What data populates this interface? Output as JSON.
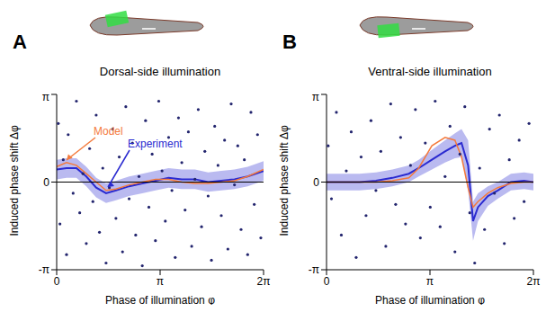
{
  "chart_data": [
    {
      "type": "scatter",
      "panel": "A",
      "title": "Dorsal-side illumination",
      "x_label": "Phase of illumination φ",
      "y_label": "Induced phase shift Δφ",
      "xlim": [
        0,
        6.2832
      ],
      "ylim": [
        -3.1416,
        3.1416
      ],
      "xticks": [
        0,
        {
          "value": 3.1416,
          "label": "π"
        },
        {
          "value": 6.2832,
          "label": "2π"
        }
      ],
      "yticks": [
        {
          "value": -3.1416,
          "label": "-π"
        },
        0,
        {
          "value": 3.1416,
          "label": "π"
        }
      ],
      "baseline": 0,
      "series": [
        {
          "type": "scatter",
          "color": "#23256e",
          "x": [
            0.05,
            0.1,
            0.2,
            0.3,
            0.35,
            0.5,
            0.6,
            0.7,
            0.8,
            0.9,
            1.0,
            1.1,
            1.2,
            1.3,
            1.4,
            1.5,
            1.6,
            1.7,
            1.8,
            1.9,
            2.0,
            2.1,
            2.2,
            2.3,
            2.4,
            2.5,
            2.6,
            2.7,
            2.8,
            2.9,
            3.0,
            3.1,
            3.2,
            3.3,
            3.4,
            3.5,
            3.6,
            3.7,
            3.8,
            3.9,
            4.0,
            4.1,
            4.2,
            4.3,
            4.4,
            4.5,
            4.6,
            4.7,
            4.8,
            4.9,
            5.0,
            5.1,
            5.2,
            5.3,
            5.4,
            5.5,
            5.6,
            5.7,
            5.8,
            5.9,
            6.0,
            6.1,
            6.2
          ],
          "values": [
            2.1,
            -1.5,
            0.8,
            -2.6,
            1.7,
            -0.4,
            2.9,
            -1.1,
            0.3,
            -2.2,
            1.2,
            -0.7,
            2.4,
            -1.8,
            0.5,
            -2.9,
            -0.2,
            1.9,
            -1.3,
            0.9,
            -2.5,
            2.7,
            -0.6,
            1.4,
            -1.9,
            0.2,
            -3.0,
            2.2,
            -0.9,
            1.0,
            -2.1,
            2.9,
            0.4,
            -1.4,
            1.6,
            -0.3,
            -2.7,
            2.3,
            0.7,
            -1.0,
            1.8,
            -2.3,
            0.1,
            2.6,
            -1.6,
            1.1,
            -0.5,
            -2.8,
            2.0,
            0.6,
            -1.2,
            1.5,
            -2.4,
            2.8,
            -0.1,
            1.3,
            -1.7,
            0.8,
            -2.6,
            2.5,
            -0.8,
            1.7,
            -2.0
          ]
        },
        {
          "type": "area",
          "color": "#8c8ce6",
          "x": [
            0,
            0.3,
            0.6,
            0.9,
            1.2,
            1.5,
            1.8,
            2.2,
            2.6,
            3.0,
            3.4,
            3.8,
            4.2,
            4.6,
            5.0,
            5.4,
            5.8,
            6.2832
          ],
          "band_lower": [
            0.1,
            0.15,
            0.15,
            -0.15,
            -0.55,
            -0.75,
            -0.65,
            -0.5,
            -0.4,
            -0.3,
            -0.2,
            -0.25,
            -0.25,
            -0.35,
            -0.3,
            -0.25,
            -0.15,
            0.05
          ],
          "band_upper": [
            0.8,
            0.85,
            0.85,
            0.55,
            0.15,
            -0.05,
            0.05,
            0.2,
            0.3,
            0.4,
            0.5,
            0.45,
            0.45,
            0.35,
            0.4,
            0.45,
            0.55,
            0.75
          ]
        },
        {
          "type": "line",
          "name": "Experiment",
          "color": "#2a2ad0",
          "x": [
            0,
            0.3,
            0.6,
            0.9,
            1.2,
            1.5,
            1.8,
            2.2,
            2.6,
            3.0,
            3.4,
            3.8,
            4.2,
            4.6,
            5.0,
            5.4,
            5.8,
            6.2832
          ],
          "values": [
            0.45,
            0.5,
            0.5,
            0.2,
            -0.2,
            -0.4,
            -0.3,
            -0.15,
            -0.05,
            0.05,
            0.15,
            0.1,
            0.1,
            0.0,
            0.05,
            0.1,
            0.2,
            0.4
          ]
        },
        {
          "type": "line",
          "name": "Model",
          "color": "#f47a3c",
          "x": [
            0,
            0.3,
            0.6,
            0.9,
            1.2,
            1.5,
            1.8,
            2.2,
            2.6,
            3.0,
            3.4,
            3.8,
            4.2,
            4.6,
            5.0,
            5.4,
            5.8,
            6.2832
          ],
          "values": [
            0.55,
            0.7,
            0.6,
            0.3,
            0.0,
            -0.3,
            -0.25,
            -0.1,
            0.0,
            0.1,
            0.1,
            0.0,
            -0.05,
            -0.05,
            0.0,
            0.05,
            0.2,
            0.45
          ]
        }
      ]
    },
    {
      "type": "scatter",
      "panel": "B",
      "title": "Ventral-side illumination",
      "x_label": "Phase of illumination φ",
      "y_label": "Induced phase shift Δφ",
      "xlim": [
        0,
        6.2832
      ],
      "ylim": [
        -3.1416,
        3.1416
      ],
      "xticks": [
        0,
        {
          "value": 3.1416,
          "label": "π"
        },
        {
          "value": 6.2832,
          "label": "2π"
        }
      ],
      "yticks": [
        {
          "value": -3.1416,
          "label": "-π"
        },
        0,
        {
          "value": 3.1416,
          "label": "π"
        }
      ],
      "baseline": 0,
      "series": [
        {
          "type": "scatter",
          "color": "#23256e",
          "x": [
            0.05,
            0.15,
            0.3,
            0.45,
            0.6,
            0.75,
            0.9,
            1.05,
            1.2,
            1.35,
            1.5,
            1.65,
            1.8,
            1.95,
            2.1,
            2.25,
            2.4,
            2.55,
            2.7,
            2.85,
            3.0,
            3.15,
            3.3,
            3.45,
            3.6,
            3.75,
            3.9,
            4.05,
            4.2,
            4.35,
            4.5,
            4.65,
            4.8,
            4.95,
            5.1,
            5.25,
            5.4,
            5.55,
            5.7,
            5.85,
            6.0,
            6.15
          ],
          "values": [
            1.3,
            -0.6,
            2.5,
            -1.9,
            0.4,
            1.8,
            -2.7,
            0.9,
            -1.2,
            2.2,
            -0.3,
            1.1,
            -2.3,
            2.8,
            -0.8,
            1.6,
            -1.5,
            0.6,
            2.6,
            -2.0,
            1.4,
            -0.9,
            2.9,
            -1.6,
            0.2,
            2.0,
            -2.5,
            1.0,
            2.7,
            -1.1,
            -2.9,
            0.5,
            -1.7,
            1.9,
            -0.4,
            2.4,
            -2.2,
            0.8,
            -1.3,
            1.5,
            -0.7,
            2.1
          ]
        },
        {
          "type": "area",
          "color": "#8c8ce6",
          "x": [
            0,
            0.5,
            1.0,
            1.5,
            2.0,
            2.5,
            2.8,
            3.2,
            3.6,
            3.9,
            4.1,
            4.3,
            4.45,
            4.6,
            4.9,
            5.2,
            5.6,
            6.0,
            6.2832
          ],
          "band_lower": [
            -0.3,
            -0.3,
            -0.3,
            -0.25,
            -0.15,
            0.0,
            0.2,
            0.45,
            0.7,
            0.85,
            0.9,
            -0.3,
            -2.1,
            -1.4,
            -0.85,
            -0.6,
            -0.3,
            -0.25,
            -0.3
          ],
          "band_upper": [
            0.3,
            0.3,
            0.3,
            0.35,
            0.45,
            0.6,
            0.8,
            1.15,
            1.5,
            1.75,
            1.9,
            1.5,
            -0.7,
            -0.4,
            -0.15,
            0.0,
            0.3,
            0.35,
            0.3
          ]
        },
        {
          "type": "line",
          "color": "#2a2ad0",
          "x": [
            0,
            0.5,
            1.0,
            1.5,
            2.0,
            2.5,
            2.8,
            3.2,
            3.6,
            3.9,
            4.1,
            4.3,
            4.45,
            4.6,
            4.9,
            5.2,
            5.6,
            6.0,
            6.2832
          ],
          "values": [
            0,
            0,
            0,
            0.05,
            0.15,
            0.3,
            0.5,
            0.8,
            1.1,
            1.3,
            1.4,
            0.6,
            -1.4,
            -0.9,
            -0.5,
            -0.3,
            0,
            0.05,
            0
          ]
        },
        {
          "type": "line",
          "color": "#f47a3c",
          "x": [
            0,
            0.5,
            1.0,
            1.5,
            2.0,
            2.5,
            2.8,
            3.2,
            3.6,
            3.9,
            4.1,
            4.3,
            4.45,
            4.6,
            4.9,
            5.2,
            5.6,
            6.0,
            6.2832
          ],
          "values": [
            0,
            0,
            0,
            0,
            0.05,
            0.15,
            0.5,
            1.3,
            1.6,
            1.5,
            0.9,
            -0.2,
            -0.9,
            -0.7,
            -0.4,
            -0.2,
            -0.05,
            0,
            0
          ]
        }
      ]
    }
  ]
}
